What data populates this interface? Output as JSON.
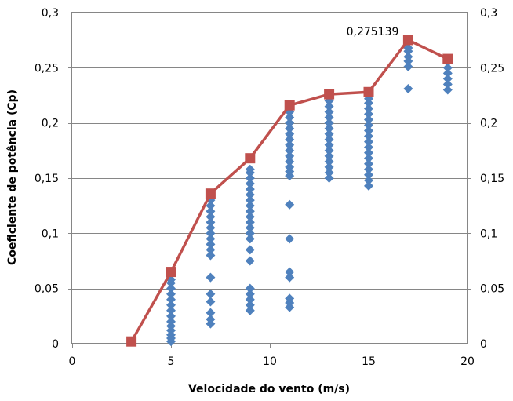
{
  "chart_data": {
    "type": "scatter",
    "title": "",
    "xlabel": "Velocidade do vento (m/s)",
    "ylabel": "Coeficiente de potência (Cp)",
    "xlim": [
      0,
      20
    ],
    "ylim": [
      0,
      0.3
    ],
    "x_ticks": [
      0,
      5,
      10,
      15,
      20
    ],
    "x_tick_labels": [
      "0",
      "5",
      "10",
      "15",
      "20"
    ],
    "y_ticks": [
      0,
      0.05,
      0.1,
      0.15,
      0.2,
      0.25,
      0.3
    ],
    "y_tick_labels": [
      "0",
      "0,05",
      "0,1",
      "0,15",
      "0,2",
      "0,25",
      "0,3"
    ],
    "y2_tick_labels": [
      "0",
      "0,05",
      "0,1",
      "0,15",
      "0,2",
      "0,25",
      "0,3"
    ],
    "grid": "horizontal",
    "legend": "none",
    "series": [
      {
        "type": "scatter",
        "marker": "diamond",
        "color": "#4F81BD",
        "points": [
          [
            5,
            0.002
          ],
          [
            5,
            0.005
          ],
          [
            5,
            0.008
          ],
          [
            5,
            0.012
          ],
          [
            5,
            0.016
          ],
          [
            5,
            0.02
          ],
          [
            5,
            0.025
          ],
          [
            5,
            0.03
          ],
          [
            5,
            0.035
          ],
          [
            5,
            0.04
          ],
          [
            5,
            0.045
          ],
          [
            5,
            0.05
          ],
          [
            5,
            0.055
          ],
          [
            5,
            0.058
          ],
          [
            7,
            0.018
          ],
          [
            7,
            0.022
          ],
          [
            7,
            0.028
          ],
          [
            7,
            0.038
          ],
          [
            7,
            0.045
          ],
          [
            7,
            0.06
          ],
          [
            7,
            0.08
          ],
          [
            7,
            0.085
          ],
          [
            7,
            0.09
          ],
          [
            7,
            0.095
          ],
          [
            7,
            0.1
          ],
          [
            7,
            0.105
          ],
          [
            7,
            0.11
          ],
          [
            7,
            0.115
          ],
          [
            7,
            0.12
          ],
          [
            7,
            0.125
          ],
          [
            7,
            0.13
          ],
          [
            9,
            0.03
          ],
          [
            9,
            0.035
          ],
          [
            9,
            0.04
          ],
          [
            9,
            0.045
          ],
          [
            9,
            0.05
          ],
          [
            9,
            0.075
          ],
          [
            9,
            0.085
          ],
          [
            9,
            0.095
          ],
          [
            9,
            0.1
          ],
          [
            9,
            0.105
          ],
          [
            9,
            0.11
          ],
          [
            9,
            0.115
          ],
          [
            9,
            0.12
          ],
          [
            9,
            0.125
          ],
          [
            9,
            0.13
          ],
          [
            9,
            0.135
          ],
          [
            9,
            0.14
          ],
          [
            9,
            0.145
          ],
          [
            9,
            0.15
          ],
          [
            9,
            0.155
          ],
          [
            9,
            0.158
          ],
          [
            11,
            0.033
          ],
          [
            11,
            0.037
          ],
          [
            11,
            0.041
          ],
          [
            11,
            0.06
          ],
          [
            11,
            0.065
          ],
          [
            11,
            0.095
          ],
          [
            11,
            0.126
          ],
          [
            11,
            0.152
          ],
          [
            11,
            0.156
          ],
          [
            11,
            0.16
          ],
          [
            11,
            0.165
          ],
          [
            11,
            0.17
          ],
          [
            11,
            0.175
          ],
          [
            11,
            0.18
          ],
          [
            11,
            0.185
          ],
          [
            11,
            0.19
          ],
          [
            11,
            0.195
          ],
          [
            11,
            0.2
          ],
          [
            11,
            0.205
          ],
          [
            11,
            0.21
          ],
          [
            13,
            0.15
          ],
          [
            13,
            0.155
          ],
          [
            13,
            0.16
          ],
          [
            13,
            0.165
          ],
          [
            13,
            0.17
          ],
          [
            13,
            0.175
          ],
          [
            13,
            0.18
          ],
          [
            13,
            0.185
          ],
          [
            13,
            0.19
          ],
          [
            13,
            0.195
          ],
          [
            13,
            0.2
          ],
          [
            13,
            0.205
          ],
          [
            13,
            0.21
          ],
          [
            13,
            0.215
          ],
          [
            13,
            0.22
          ],
          [
            15,
            0.143
          ],
          [
            15,
            0.148
          ],
          [
            15,
            0.153
          ],
          [
            15,
            0.158
          ],
          [
            15,
            0.163
          ],
          [
            15,
            0.168
          ],
          [
            15,
            0.173
          ],
          [
            15,
            0.178
          ],
          [
            15,
            0.183
          ],
          [
            15,
            0.188
          ],
          [
            15,
            0.193
          ],
          [
            15,
            0.198
          ],
          [
            15,
            0.203
          ],
          [
            15,
            0.208
          ],
          [
            15,
            0.213
          ],
          [
            15,
            0.218
          ],
          [
            15,
            0.222
          ],
          [
            17,
            0.231
          ],
          [
            17,
            0.251
          ],
          [
            17,
            0.256
          ],
          [
            17,
            0.26
          ],
          [
            17,
            0.265
          ],
          [
            17,
            0.268
          ],
          [
            19,
            0.23
          ],
          [
            19,
            0.235
          ],
          [
            19,
            0.24
          ],
          [
            19,
            0.245
          ],
          [
            19,
            0.25
          ],
          [
            19,
            0.255
          ]
        ]
      },
      {
        "type": "line",
        "marker": "square",
        "color": "#C0504D",
        "x": [
          3,
          5,
          7,
          9,
          11,
          13,
          15,
          17,
          19
        ],
        "values": [
          0.002,
          0.065,
          0.136,
          0.168,
          0.216,
          0.226,
          0.228,
          0.275139,
          0.258
        ]
      }
    ],
    "annotations": [
      {
        "text": "0,275139",
        "x": 17,
        "y": 0.275139
      }
    ]
  }
}
